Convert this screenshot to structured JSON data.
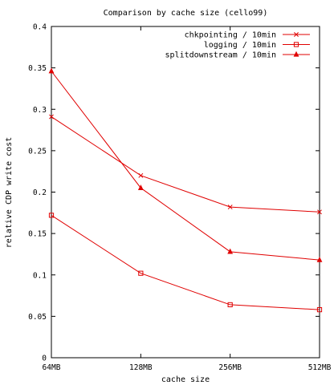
{
  "chart_data": {
    "type": "line",
    "title": "Comparison by cache size (cello99)",
    "xlabel": "cache size",
    "ylabel": "relative CDP write cost",
    "categories": [
      "64MB",
      "128MB",
      "256MB",
      "512MB"
    ],
    "ylim": [
      0,
      0.4
    ],
    "yticks": [
      "0",
      "0.05",
      "0.1",
      "0.15",
      "0.2",
      "0.25",
      "0.3",
      "0.35",
      "0.4"
    ],
    "yticks_values": [
      0,
      0.05,
      0.1,
      0.15,
      0.2,
      0.25,
      0.3,
      0.35,
      0.4
    ],
    "grid": false,
    "legend_position": "top-right",
    "line_color": "#e00000",
    "series": [
      {
        "name": "chkpointing / 10min",
        "marker": "x",
        "values": [
          0.291,
          0.22,
          0.182,
          0.176
        ]
      },
      {
        "name": "logging / 10min",
        "marker": "square",
        "values": [
          0.172,
          0.102,
          0.064,
          0.058
        ]
      },
      {
        "name": "splitdownstream / 10min",
        "marker": "triangle",
        "values": [
          0.346,
          0.205,
          0.128,
          0.118
        ]
      }
    ]
  }
}
